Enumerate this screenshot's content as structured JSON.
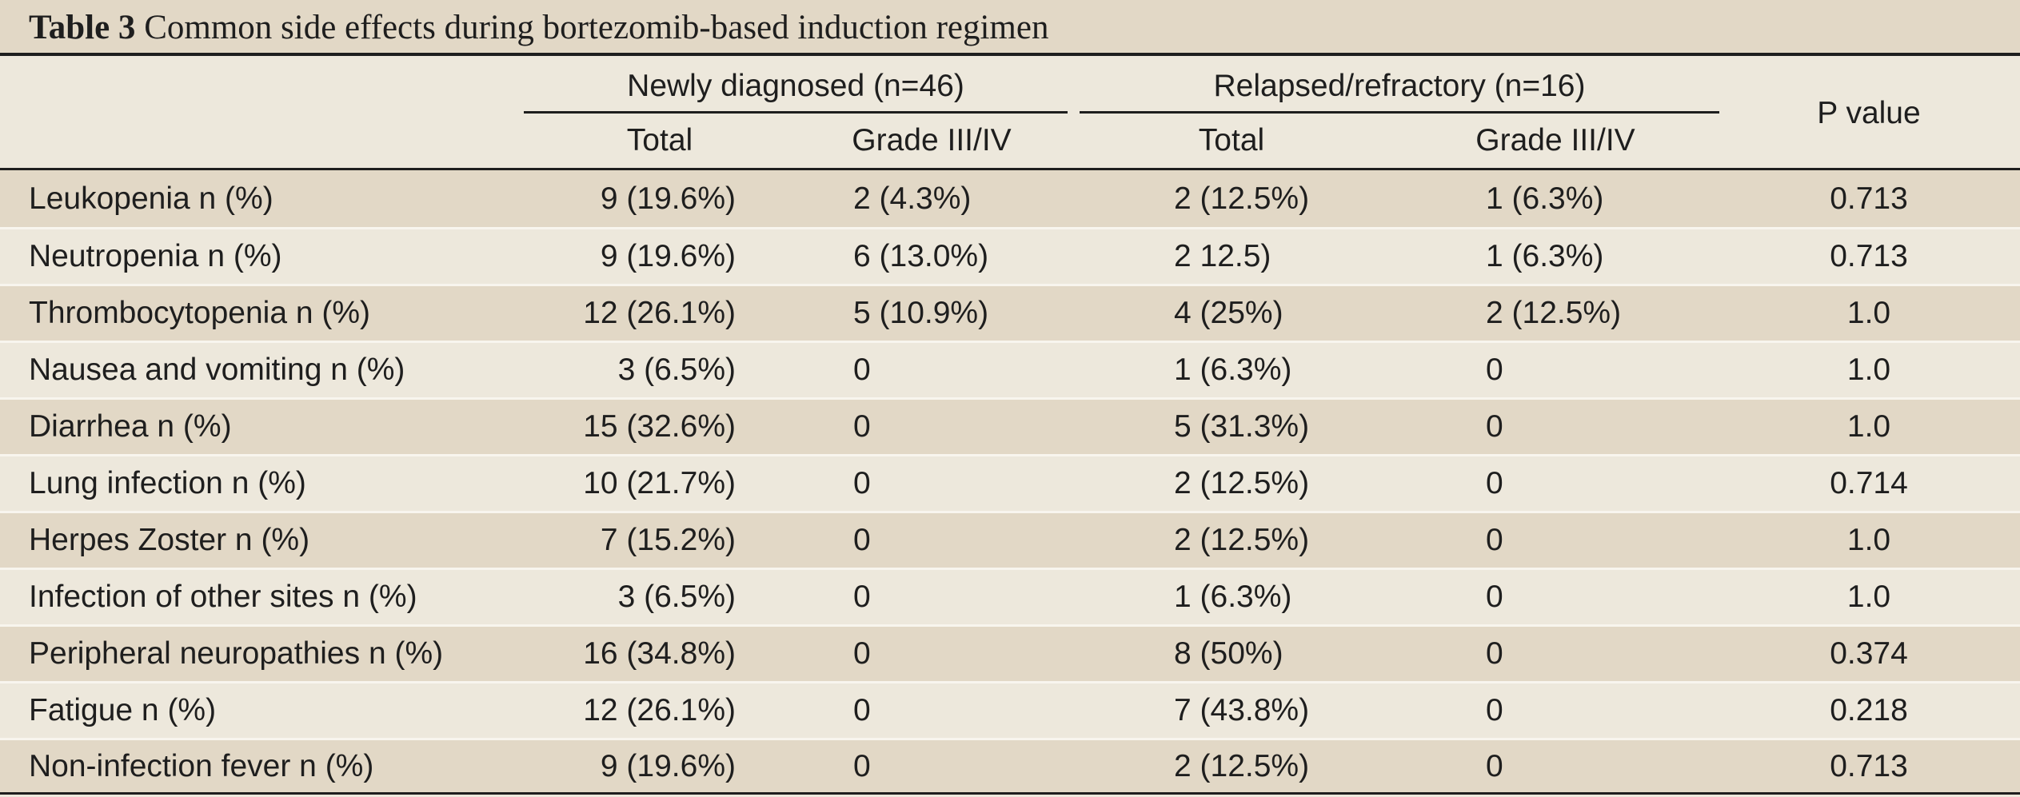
{
  "caption": {
    "label": "Table 3",
    "text": " Common side effects during bortezomib-based induction regimen"
  },
  "header": {
    "group_newly": "Newly diagnosed (n=46)",
    "group_relapsed": "Relapsed/refractory (n=16)",
    "sub_total_1": "Total",
    "sub_grade_1": "Grade III/IV",
    "sub_total_2": "Total",
    "sub_grade_2": "Grade III/IV",
    "p_value": "P value"
  },
  "rows": [
    {
      "effect": "Leukopenia n (%)",
      "nd_total": "9 (19.6%)",
      "nd_grade": "2 (4.3%)",
      "rr_total": "2 (12.5%)",
      "rr_grade": "1 (6.3%)",
      "p": "0.713"
    },
    {
      "effect": "Neutropenia n (%)",
      "nd_total": "9 (19.6%)",
      "nd_grade": "6 (13.0%)",
      "rr_total": "2 12.5)",
      "rr_grade": "1 (6.3%)",
      "p": "0.713"
    },
    {
      "effect": "Thrombocytopenia n (%)",
      "nd_total": "12 (26.1%)",
      "nd_grade": "5 (10.9%)",
      "rr_total": "4 (25%)",
      "rr_grade": "2 (12.5%)",
      "p": "1.0"
    },
    {
      "effect": "Nausea and vomiting n (%)",
      "nd_total": "3 (6.5%)",
      "nd_grade": "0",
      "rr_total": "1 (6.3%)",
      "rr_grade": "0",
      "p": "1.0"
    },
    {
      "effect": "Diarrhea n (%)",
      "nd_total": "15 (32.6%)",
      "nd_grade": "0",
      "rr_total": "5 (31.3%)",
      "rr_grade": "0",
      "p": "1.0"
    },
    {
      "effect": "Lung infection n (%)",
      "nd_total": "10 (21.7%)",
      "nd_grade": "0",
      "rr_total": "2 (12.5%)",
      "rr_grade": "0",
      "p": "0.714"
    },
    {
      "effect": "Herpes Zoster n (%)",
      "nd_total": "7 (15.2%)",
      "nd_grade": "0",
      "rr_total": "2 (12.5%)",
      "rr_grade": "0",
      "p": "1.0"
    },
    {
      "effect": "Infection of other sites n (%)",
      "nd_total": "3 (6.5%)",
      "nd_grade": "0",
      "rr_total": "1 (6.3%)",
      "rr_grade": "0",
      "p": "1.0"
    },
    {
      "effect": "Peripheral neuropathies n (%)",
      "nd_total": "16 (34.8%)",
      "nd_grade": "0",
      "rr_total": "8 (50%)",
      "rr_grade": "0",
      "p": "0.374"
    },
    {
      "effect": "Fatigue n (%)",
      "nd_total": "12 (26.1%)",
      "nd_grade": "0",
      "rr_total": "7 (43.8%)",
      "rr_grade": "0",
      "p": "0.218"
    },
    {
      "effect": "Non-infection fever n (%)",
      "nd_total": "9 (19.6%)",
      "nd_grade": "0",
      "rr_total": "2 (12.5%)",
      "rr_grade": "0",
      "p": "0.713"
    }
  ]
}
